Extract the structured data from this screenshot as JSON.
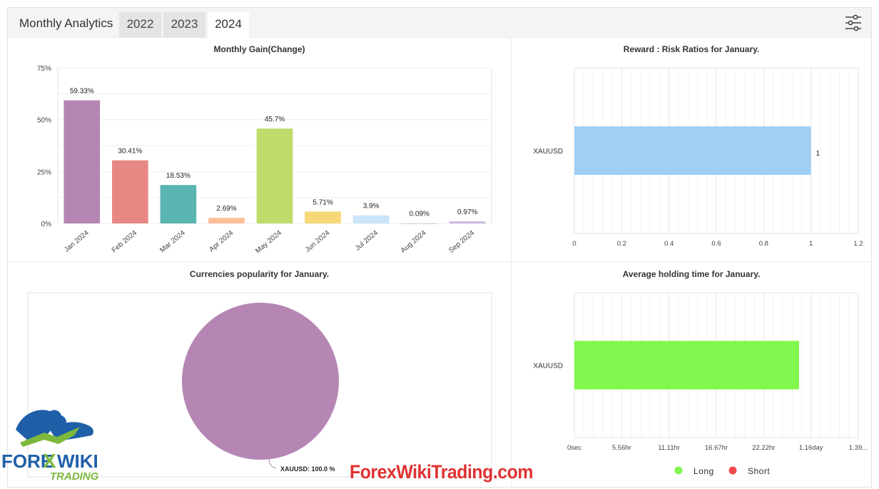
{
  "header": {
    "title": "Monthly Analytics",
    "tabs": [
      {
        "label": "2022",
        "active": false
      },
      {
        "label": "2023",
        "active": false
      },
      {
        "label": "2024",
        "active": true
      }
    ],
    "filter_icon": "sliders-icon"
  },
  "chart_data": [
    {
      "type": "bar",
      "title": "Monthly Gain(Change)",
      "categories": [
        "Jan 2024",
        "Feb 2024",
        "Mar 2024",
        "Apr 2024",
        "May 2024",
        "Jun 2024",
        "Jul 2024",
        "Aug 2024",
        "Sep 2024"
      ],
      "values": [
        59.33,
        30.41,
        18.53,
        2.69,
        45.7,
        5.71,
        3.9,
        0.09,
        0.97
      ],
      "data_labels": [
        "59.33%",
        "30.41%",
        "18.53%",
        "2.69%",
        "45.7%",
        "5.71%",
        "3.9%",
        "0.09%",
        "0.97%"
      ],
      "colors": [
        "#b586b3",
        "#e88884",
        "#5ab4b1",
        "#ffbf99",
        "#bfdb6b",
        "#f7d876",
        "#cbe4f8",
        "#cccccc",
        "#c9b8e0"
      ],
      "yticks": [
        "0%",
        "25%",
        "50%",
        "75%"
      ],
      "ylim": [
        0,
        75
      ],
      "grid": true
    },
    {
      "type": "bar",
      "orientation": "horizontal",
      "title": "Reward : Risk Ratios for January.",
      "categories": [
        "XAUUSD"
      ],
      "values": [
        1
      ],
      "data_labels": [
        "1"
      ],
      "color": "#a0cff5",
      "xticks": [
        "0",
        "0.2",
        "0.4",
        "0.6",
        "0.8",
        "1",
        "1.2"
      ],
      "xlim": [
        0,
        1.2
      ],
      "grid": true
    },
    {
      "type": "pie",
      "title": "Currencies popularity for January.",
      "slices": [
        {
          "label": "XAUUSD: 100.0 %",
          "value": 100.0,
          "color": "#b586b3"
        }
      ]
    },
    {
      "type": "bar",
      "orientation": "horizontal",
      "title": "Average holding time for January.",
      "categories": [
        "XAUUSD"
      ],
      "values": [
        1.1
      ],
      "color": "#82f74d",
      "xticks": [
        "0sec",
        "5.56hr",
        "11.11hr",
        "16.67hr",
        "22.22hr",
        "1.16day",
        "1.39..."
      ],
      "xlim": [
        0,
        1.39
      ],
      "legend": [
        {
          "label": "Long",
          "color": "#82f74d"
        },
        {
          "label": "Short",
          "color": "#f04b4b"
        }
      ],
      "legend_position": "bottom"
    }
  ],
  "watermark": {
    "logo_top": "FORE",
    "logo_x": "X",
    "logo_wiki": "WIKI",
    "logo_bottom": "TRADING",
    "text": "ForexWikiTrading.com"
  }
}
